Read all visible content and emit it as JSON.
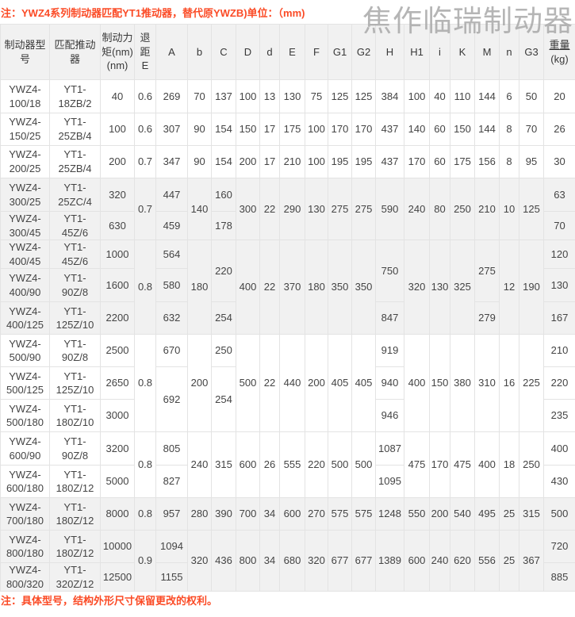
{
  "watermark": {
    "text": "焦作临瑞制动器"
  },
  "notes": {
    "top": "注：YWZ4系列制动器匹配YT1推动器，替代原YWZB)单位：（mm)",
    "bottom": "注：具体型号，结构外形尺寸保留更改的权利。"
  },
  "colors": {
    "accent": "#fb4b26",
    "row_shade": "#f1f1f1",
    "border": "#e3e3e3",
    "watermark_gray": "#a9a9a9"
  },
  "table": {
    "headers": [
      "制动器型号",
      "匹配推动器",
      "制动力\n矩(nm)\n(nm)",
      "退\n距\nE",
      "A",
      "b",
      "C",
      "D",
      "d",
      "E",
      "F",
      "G1",
      "G2",
      "H",
      "H1",
      "i",
      "K",
      "M",
      "n",
      "G3"
    ],
    "weight_header": {
      "label": "重量",
      "unit": "(kg)"
    },
    "rows": [
      {
        "shaded": false,
        "cells": [
          "YWZ4-100/18",
          "YT1-18ZB/2",
          "40",
          "0.6",
          "269",
          "70",
          "137",
          "100",
          "13",
          "130",
          "75",
          "125",
          "125",
          "384",
          "100",
          "40",
          "110",
          "144",
          "6",
          "50",
          "20"
        ]
      },
      {
        "shaded": false,
        "cells": [
          "YWZ4-150/25",
          "YT1-25ZB/4",
          "100",
          "0.6",
          "307",
          "90",
          "154",
          "150",
          "17",
          "175",
          "100",
          "170",
          "170",
          "437",
          "140",
          "60",
          "150",
          "144",
          "8",
          "70",
          "26"
        ]
      },
      {
        "shaded": false,
        "cells": [
          "YWZ4-200/25",
          "YT1-25ZB/4",
          "200",
          "0.7",
          "347",
          "90",
          "154",
          "200",
          "17",
          "210",
          "100",
          "195",
          "195",
          "437",
          "170",
          "60",
          "175",
          "156",
          "8",
          "95",
          "30"
        ]
      },
      {
        "shaded": true,
        "cells": [
          "YWZ4-300/25",
          "YT1-25ZC/4",
          "320",
          {
            "t": "0.7",
            "rs": 2
          },
          "447",
          {
            "t": "140",
            "rs": 2
          },
          "160",
          {
            "t": "300",
            "rs": 2
          },
          {
            "t": "22",
            "rs": 2
          },
          {
            "t": "290",
            "rs": 2
          },
          {
            "t": "130",
            "rs": 2
          },
          {
            "t": "275",
            "rs": 2
          },
          {
            "t": "275",
            "rs": 2
          },
          {
            "t": "590",
            "rs": 2
          },
          {
            "t": "240",
            "rs": 2
          },
          {
            "t": "80",
            "rs": 2
          },
          {
            "t": "250",
            "rs": 2
          },
          {
            "t": "210",
            "rs": 2
          },
          {
            "t": "10",
            "rs": 2
          },
          {
            "t": "125",
            "rs": 2
          },
          "63"
        ]
      },
      {
        "shaded": true,
        "cells": [
          "YWZ4-300/45",
          "YT1-45Z/6",
          "630",
          null,
          "459",
          null,
          "178",
          null,
          null,
          null,
          null,
          null,
          null,
          null,
          null,
          null,
          null,
          null,
          null,
          null,
          "70"
        ]
      },
      {
        "shaded": true,
        "cells": [
          "YWZ4-400/45",
          "YT1-45Z/6",
          "1000",
          {
            "t": "0.8",
            "rs": 3
          },
          "564",
          {
            "t": "180",
            "rs": 3
          },
          {
            "t": "220",
            "rs": 2
          },
          {
            "t": "400",
            "rs": 3
          },
          {
            "t": "22",
            "rs": 3
          },
          {
            "t": "370",
            "rs": 3
          },
          {
            "t": "180",
            "rs": 3
          },
          {
            "t": "350",
            "rs": 3
          },
          {
            "t": "350",
            "rs": 3
          },
          {
            "t": "750",
            "rs": 2
          },
          {
            "t": "320",
            "rs": 3
          },
          {
            "t": "130",
            "rs": 3
          },
          {
            "t": "325",
            "rs": 3
          },
          {
            "t": "275",
            "rs": 2
          },
          {
            "t": "12",
            "rs": 3
          },
          {
            "t": "190",
            "rs": 3
          },
          "120"
        ]
      },
      {
        "shaded": true,
        "cells": [
          "YWZ4-400/90",
          "YT1-90Z/8",
          "1600",
          null,
          "580",
          null,
          null,
          null,
          null,
          null,
          null,
          null,
          null,
          null,
          null,
          null,
          null,
          null,
          null,
          null,
          "130"
        ]
      },
      {
        "shaded": true,
        "cells": [
          "YWZ4-400/125",
          "YT1-125Z/10",
          "2200",
          null,
          "632",
          null,
          "254",
          null,
          null,
          null,
          null,
          null,
          null,
          "847",
          null,
          null,
          null,
          "279",
          null,
          null,
          "167"
        ]
      },
      {
        "shaded": false,
        "cells": [
          "YWZ4-500/90",
          "YT1-90Z/8",
          "2500",
          {
            "t": "0.8",
            "rs": 3
          },
          "670",
          {
            "t": "200",
            "rs": 3
          },
          "250",
          {
            "t": "500",
            "rs": 3
          },
          {
            "t": "22",
            "rs": 3
          },
          {
            "t": "440",
            "rs": 3
          },
          {
            "t": "200",
            "rs": 3
          },
          {
            "t": "405",
            "rs": 3
          },
          {
            "t": "405",
            "rs": 3
          },
          "919",
          {
            "t": "400",
            "rs": 3
          },
          {
            "t": "150",
            "rs": 3
          },
          {
            "t": "380",
            "rs": 3
          },
          {
            "t": "310",
            "rs": 3
          },
          {
            "t": "16",
            "rs": 3
          },
          {
            "t": "225",
            "rs": 3
          },
          "210"
        ]
      },
      {
        "shaded": false,
        "cells": [
          "YWZ4-500/125",
          "YT1-125Z/10",
          "2650",
          null,
          {
            "t": "692",
            "rs": 2
          },
          null,
          {
            "t": "254",
            "rs": 2
          },
          null,
          null,
          null,
          null,
          null,
          null,
          "940",
          null,
          null,
          null,
          null,
          null,
          null,
          "220"
        ]
      },
      {
        "shaded": false,
        "cells": [
          "YWZ4-500/180",
          "YT1-180Z/10",
          "3000",
          null,
          null,
          null,
          null,
          null,
          null,
          null,
          null,
          null,
          null,
          "946",
          null,
          null,
          null,
          null,
          null,
          null,
          "235"
        ]
      },
      {
        "shaded": false,
        "cells": [
          "YWZ4-600/90",
          "YT1-90Z/8",
          "3200",
          {
            "t": "0.8",
            "rs": 2
          },
          "805",
          {
            "t": "240",
            "rs": 2
          },
          {
            "t": "315",
            "rs": 2
          },
          {
            "t": "600",
            "rs": 2
          },
          {
            "t": "26",
            "rs": 2
          },
          {
            "t": "555",
            "rs": 2
          },
          {
            "t": "220",
            "rs": 2
          },
          {
            "t": "500",
            "rs": 2
          },
          {
            "t": "500",
            "rs": 2
          },
          "1087",
          {
            "t": "475",
            "rs": 2
          },
          {
            "t": "170",
            "rs": 2
          },
          {
            "t": "475",
            "rs": 2
          },
          {
            "t": "400",
            "rs": 2
          },
          {
            "t": "18",
            "rs": 2
          },
          {
            "t": "250",
            "rs": 2
          },
          "400"
        ]
      },
      {
        "shaded": false,
        "cells": [
          "YWZ4-600/180",
          "YT1-180Z/12",
          "5000",
          null,
          "827",
          null,
          null,
          null,
          null,
          null,
          null,
          null,
          null,
          "1095",
          null,
          null,
          null,
          null,
          null,
          null,
          "430"
        ]
      },
      {
        "shaded": true,
        "cells": [
          "YWZ4-700/180",
          "YT1-180Z/12",
          "8000",
          "0.8",
          "957",
          "280",
          "390",
          "700",
          "34",
          "600",
          "270",
          "575",
          "575",
          "1248",
          "550",
          "200",
          "540",
          "495",
          "25",
          "315",
          "500"
        ]
      },
      {
        "shaded": true,
        "cells": [
          "YWZ4-800/180",
          "YT1-180Z/12",
          "10000",
          {
            "t": "0.9",
            "rs": 2
          },
          "1094",
          {
            "t": "320",
            "rs": 2
          },
          {
            "t": "436",
            "rs": 2
          },
          {
            "t": "800",
            "rs": 2
          },
          {
            "t": "34",
            "rs": 2
          },
          {
            "t": "680",
            "rs": 2
          },
          {
            "t": "320",
            "rs": 2
          },
          {
            "t": "677",
            "rs": 2
          },
          {
            "t": "677",
            "rs": 2
          },
          {
            "t": "1389",
            "rs": 2
          },
          {
            "t": "600",
            "rs": 2
          },
          {
            "t": "240",
            "rs": 2
          },
          {
            "t": "620",
            "rs": 2
          },
          {
            "t": "556",
            "rs": 2
          },
          {
            "t": "25",
            "rs": 2
          },
          {
            "t": "367",
            "rs": 2
          },
          "720"
        ]
      },
      {
        "shaded": true,
        "cells": [
          "YWZ4-800/320",
          "YT1-320Z/12",
          "12500",
          null,
          "1155",
          null,
          null,
          null,
          null,
          null,
          null,
          null,
          null,
          null,
          null,
          null,
          null,
          null,
          null,
          null,
          "885"
        ]
      }
    ]
  }
}
